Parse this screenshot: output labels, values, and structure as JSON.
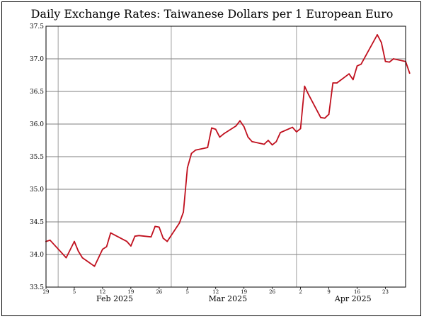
{
  "chart_data": {
    "type": "line",
    "title": "Daily Exchange Rates: Taiwanese Dollars per 1 European Euro",
    "xlabel": "",
    "ylabel": "",
    "ylim": [
      33.5,
      37.5
    ],
    "y_ticks": [
      "33.5",
      "34.0",
      "34.5",
      "35.0",
      "35.5",
      "36.0",
      "36.5",
      "37.0",
      "37.5"
    ],
    "x_range": [
      "2025-01-29",
      "2025-04-28"
    ],
    "day_ticks": [
      {
        "date": "2025-01-29",
        "label": "29"
      },
      {
        "date": "2025-02-05",
        "label": "5"
      },
      {
        "date": "2025-02-12",
        "label": "12"
      },
      {
        "date": "2025-02-19",
        "label": "19"
      },
      {
        "date": "2025-02-26",
        "label": "26"
      },
      {
        "date": "2025-03-05",
        "label": "5"
      },
      {
        "date": "2025-03-12",
        "label": "12"
      },
      {
        "date": "2025-03-19",
        "label": "19"
      },
      {
        "date": "2025-03-26",
        "label": "26"
      },
      {
        "date": "2025-04-02",
        "label": "2"
      },
      {
        "date": "2025-04-09",
        "label": "9"
      },
      {
        "date": "2025-04-16",
        "label": "16"
      },
      {
        "date": "2025-04-23",
        "label": "23"
      }
    ],
    "month_labels": [
      {
        "date": "2025-02-15",
        "label": "Feb 2025"
      },
      {
        "date": "2025-03-15",
        "label": "Mar 2025"
      },
      {
        "date": "2025-04-15",
        "label": "Apr 2025"
      }
    ],
    "month_boundaries": [
      "2025-02-01",
      "2025-03-01",
      "2025-04-01"
    ],
    "line_color": "#c0101e",
    "grid": true,
    "series": [
      {
        "x": [
          "2025-01-29",
          "2025-01-30",
          "2025-02-03",
          "2025-02-05",
          "2025-02-06",
          "2025-02-07",
          "2025-02-10",
          "2025-02-11",
          "2025-02-12",
          "2025-02-13",
          "2025-02-14",
          "2025-02-18",
          "2025-02-19",
          "2025-02-20",
          "2025-02-21",
          "2025-02-24",
          "2025-02-25",
          "2025-02-26",
          "2025-02-27",
          "2025-02-28",
          "2025-03-03",
          "2025-03-04",
          "2025-03-05",
          "2025-03-06",
          "2025-03-07",
          "2025-03-10",
          "2025-03-11",
          "2025-03-12",
          "2025-03-13",
          "2025-03-14",
          "2025-03-17",
          "2025-03-18",
          "2025-03-19",
          "2025-03-20",
          "2025-03-21",
          "2025-03-24",
          "2025-03-25",
          "2025-03-26",
          "2025-03-27",
          "2025-03-28",
          "2025-03-31",
          "2025-04-01",
          "2025-04-02",
          "2025-04-03",
          "2025-04-04",
          "2025-04-07",
          "2025-04-08",
          "2025-04-09",
          "2025-04-10",
          "2025-04-11",
          "2025-04-14",
          "2025-04-15",
          "2025-04-16",
          "2025-04-17",
          "2025-04-21",
          "2025-04-22",
          "2025-04-23",
          "2025-04-24",
          "2025-04-25",
          "2025-04-28",
          "2025-04-29"
        ],
        "values": [
          34.2,
          34.22,
          33.95,
          34.2,
          34.05,
          33.95,
          33.82,
          33.95,
          34.08,
          34.12,
          34.33,
          34.2,
          34.13,
          34.28,
          34.29,
          34.27,
          34.43,
          34.42,
          34.25,
          34.2,
          34.48,
          34.65,
          35.33,
          35.55,
          35.6,
          35.64,
          35.94,
          35.92,
          35.8,
          35.85,
          35.97,
          36.05,
          35.96,
          35.8,
          35.73,
          35.69,
          35.75,
          35.68,
          35.73,
          35.87,
          35.95,
          35.88,
          35.93,
          36.58,
          36.45,
          36.1,
          36.09,
          36.15,
          36.63,
          36.63,
          36.77,
          36.68,
          36.89,
          36.92,
          37.37,
          37.25,
          36.96,
          36.95,
          37.0,
          36.96,
          36.78
        ]
      }
    ]
  }
}
